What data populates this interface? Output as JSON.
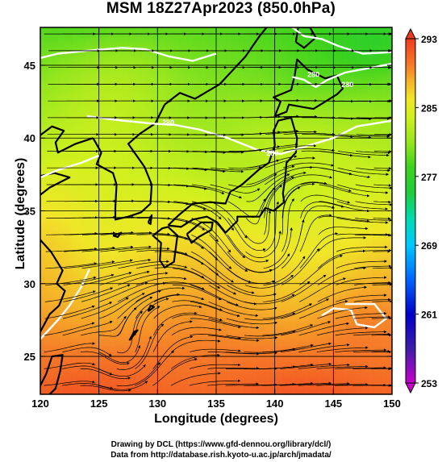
{
  "title": "MSM 18Z27Apr2023 (850.0hPa)",
  "xlabel": "Longitude (degrees)",
  "ylabel": "Latitude  (degrees)",
  "credits": [
    "Drawing by DCL (https://www.gfd-dennou.org/library/dcl/)",
    "Data from http://database.rish.kyoto-u.ac.jp/arch/jmadata/"
  ],
  "chart_data": {
    "type": "heatmap",
    "variable": "temperature (K) with wind streamlines",
    "title": "MSM 18Z27Apr2023 (850.0hPa)",
    "xlabel": "Longitude (degrees)",
    "ylabel": "Latitude  (degrees)",
    "xlim": [
      120,
      150
    ],
    "ylim": [
      22.4,
      47.6
    ],
    "xticks": [
      120,
      125,
      130,
      135,
      140,
      145,
      150
    ],
    "yticks": [
      25,
      30,
      35,
      40,
      45
    ],
    "grid": true,
    "colorbar": {
      "min": 253,
      "max": 293,
      "ticks": [
        253,
        261,
        269,
        277,
        285,
        293
      ],
      "stops": [
        {
          "value": 253,
          "color": "#c800c8"
        },
        {
          "value": 257,
          "color": "#3c1eaa"
        },
        {
          "value": 261,
          "color": "#0000c8"
        },
        {
          "value": 265,
          "color": "#0064ff"
        },
        {
          "value": 269,
          "color": "#00c8ff"
        },
        {
          "value": 272,
          "color": "#00dcb4"
        },
        {
          "value": 275,
          "color": "#1ecd3c"
        },
        {
          "value": 278,
          "color": "#3cd21e"
        },
        {
          "value": 281,
          "color": "#96e61e"
        },
        {
          "value": 284,
          "color": "#d2f01e"
        },
        {
          "value": 286,
          "color": "#f0e628"
        },
        {
          "value": 288,
          "color": "#f5b428"
        },
        {
          "value": 290,
          "color": "#f57828"
        },
        {
          "value": 293,
          "color": "#f03c1e"
        }
      ]
    },
    "contour_labels": [
      {
        "text": "280",
        "lon": 130.9,
        "lat": 40.9
      },
      {
        "text": "280",
        "lon": 143.3,
        "lat": 44.2
      },
      {
        "text": "280",
        "lon": 139.8,
        "lat": 38.8
      },
      {
        "text": "280",
        "lon": 146.2,
        "lat": 43.5
      }
    ]
  }
}
